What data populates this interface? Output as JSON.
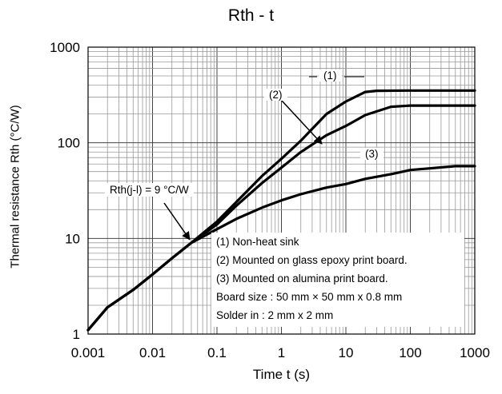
{
  "chart_data": {
    "type": "line",
    "title": "Rth - t",
    "xlabel": "Time  t (s)",
    "ylabel": "Thermal resistance  Rth (°C/W)",
    "xscale": "log",
    "yscale": "log",
    "xlim": [
      0.001,
      1000
    ],
    "ylim": [
      1,
      1000
    ],
    "grid": true,
    "x_ticks": [
      "0.001",
      "0.01",
      "0.1",
      "1",
      "10",
      "100",
      "1000"
    ],
    "y_ticks": [
      "1",
      "10",
      "100",
      "1000"
    ],
    "series": [
      {
        "name": "(1)",
        "x": [
          0.001,
          0.002,
          0.005,
          0.01,
          0.02,
          0.04,
          0.1,
          0.2,
          0.5,
          1,
          2,
          5,
          10,
          20,
          30,
          100,
          1000
        ],
        "y": [
          1.1,
          1.9,
          2.9,
          4.2,
          6.2,
          9.0,
          15,
          24,
          45,
          68,
          105,
          200,
          270,
          340,
          350,
          352,
          352
        ]
      },
      {
        "name": "(2)",
        "x": [
          0.001,
          0.002,
          0.005,
          0.01,
          0.02,
          0.04,
          0.1,
          0.2,
          0.5,
          1,
          2,
          5,
          10,
          20,
          50,
          100,
          1000
        ],
        "y": [
          1.1,
          1.9,
          2.9,
          4.2,
          6.2,
          9.0,
          14,
          22,
          38,
          55,
          80,
          120,
          150,
          195,
          238,
          245,
          245
        ]
      },
      {
        "name": "(3)",
        "x": [
          0.001,
          0.002,
          0.005,
          0.01,
          0.02,
          0.04,
          0.1,
          0.2,
          0.5,
          1,
          2,
          5,
          10,
          20,
          50,
          100,
          200,
          500,
          1000
        ],
        "y": [
          1.1,
          1.9,
          2.9,
          4.2,
          6.2,
          9.0,
          12.5,
          16,
          21,
          25,
          29,
          34,
          37,
          42,
          47,
          52,
          54,
          57,
          57
        ]
      }
    ],
    "annotations": [
      {
        "text": "Rth(j-l) = 9 °C/W",
        "x": 0.04,
        "y": 9.0
      },
      {
        "text": "(1)"
      },
      {
        "text": "(2)"
      },
      {
        "text": "(3)"
      }
    ],
    "legend_notes": [
      "(1) Non-heat sink",
      "(2) Mounted on glass epoxy print board.",
      "(3) Mounted on alumina print board.",
      "Board size : 50 mm × 50 mm x 0.8 mm",
      "Solder in : 2 mm x 2 mm"
    ]
  }
}
